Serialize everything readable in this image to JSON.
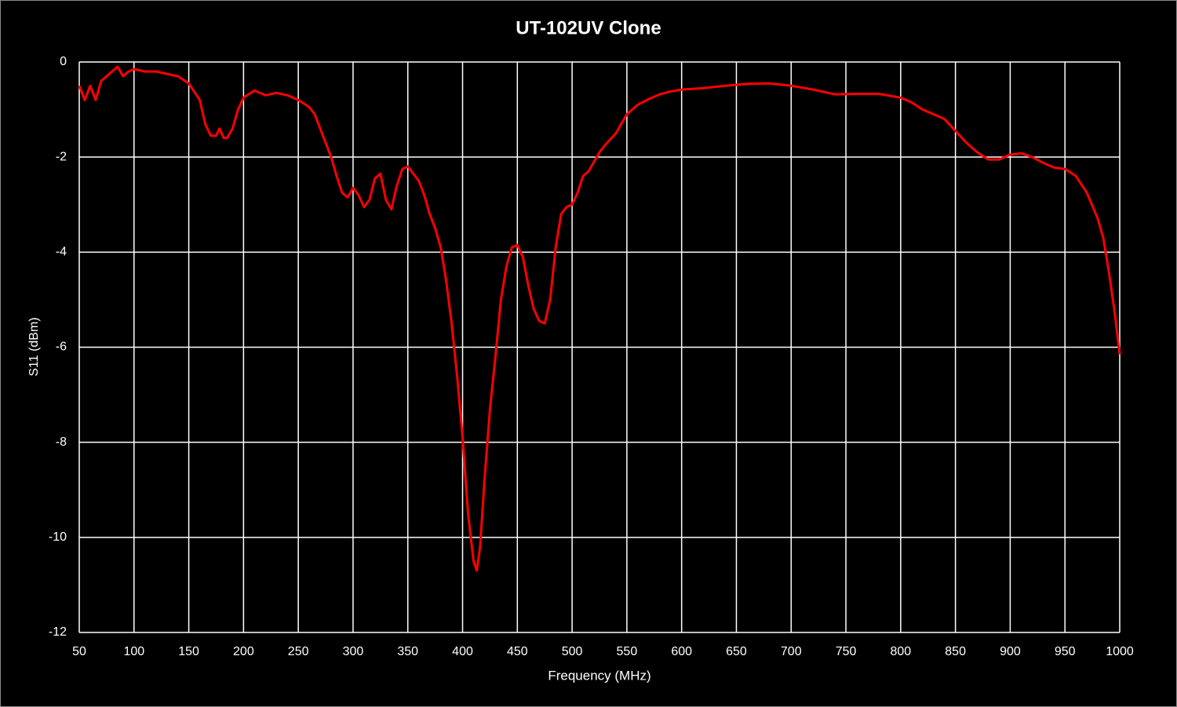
{
  "chart_data": {
    "type": "line",
    "title": "UT-102UV Clone",
    "xlabel": "Frequency (MHz)",
    "ylabel": "S11 (dBm)",
    "xlim": [
      50,
      1000
    ],
    "xticks": [
      50,
      100,
      150,
      200,
      250,
      300,
      350,
      400,
      450,
      500,
      550,
      600,
      650,
      700,
      750,
      800,
      850,
      900,
      950,
      1000
    ],
    "ylim": [
      -12,
      0
    ],
    "yticks": [
      -12,
      -10,
      -8,
      -6,
      -4,
      -2,
      0
    ],
    "grid": true,
    "series": [
      {
        "name": "S11",
        "color": "#ff0000",
        "x": [
          50,
          55,
          60,
          65,
          70,
          75,
          80,
          85,
          90,
          95,
          100,
          110,
          120,
          130,
          140,
          150,
          160,
          165,
          170,
          175,
          178,
          182,
          185,
          190,
          195,
          200,
          210,
          215,
          220,
          230,
          240,
          250,
          260,
          265,
          270,
          275,
          280,
          285,
          290,
          295,
          300,
          305,
          310,
          315,
          320,
          325,
          330,
          335,
          340,
          345,
          350,
          355,
          360,
          365,
          370,
          375,
          380,
          385,
          390,
          395,
          400,
          405,
          410,
          413,
          416,
          420,
          425,
          430,
          435,
          440,
          445,
          450,
          455,
          460,
          465,
          470,
          475,
          480,
          485,
          490,
          495,
          500,
          505,
          510,
          515,
          520,
          525,
          530,
          540,
          550,
          560,
          570,
          580,
          590,
          600,
          620,
          640,
          660,
          680,
          700,
          720,
          740,
          760,
          780,
          800,
          810,
          820,
          830,
          840,
          850,
          860,
          870,
          880,
          890,
          900,
          910,
          920,
          930,
          940,
          950,
          960,
          970,
          980,
          985,
          990,
          995,
          1000
        ],
        "values": [
          -0.5,
          -0.8,
          -0.5,
          -0.8,
          -0.4,
          -0.3,
          -0.2,
          -0.1,
          -0.3,
          -0.2,
          -0.15,
          -0.2,
          -0.2,
          -0.25,
          -0.3,
          -0.45,
          -0.8,
          -1.3,
          -1.55,
          -1.55,
          -1.4,
          -1.6,
          -1.6,
          -1.4,
          -1.0,
          -0.75,
          -0.6,
          -0.65,
          -0.7,
          -0.65,
          -0.7,
          -0.8,
          -0.95,
          -1.1,
          -1.4,
          -1.7,
          -2.0,
          -2.4,
          -2.75,
          -2.85,
          -2.65,
          -2.8,
          -3.05,
          -2.9,
          -2.45,
          -2.35,
          -2.9,
          -3.1,
          -2.6,
          -2.25,
          -2.2,
          -2.35,
          -2.5,
          -2.8,
          -3.2,
          -3.5,
          -3.9,
          -4.6,
          -5.5,
          -6.6,
          -7.9,
          -9.5,
          -10.5,
          -10.7,
          -10.2,
          -8.8,
          -7.3,
          -6.2,
          -5.0,
          -4.3,
          -3.9,
          -3.85,
          -4.1,
          -4.7,
          -5.2,
          -5.45,
          -5.5,
          -5.0,
          -3.9,
          -3.2,
          -3.05,
          -3.0,
          -2.75,
          -2.4,
          -2.3,
          -2.1,
          -1.9,
          -1.75,
          -1.5,
          -1.1,
          -0.9,
          -0.78,
          -0.68,
          -0.62,
          -0.58,
          -0.55,
          -0.5,
          -0.46,
          -0.45,
          -0.5,
          -0.58,
          -0.68,
          -0.67,
          -0.67,
          -0.75,
          -0.85,
          -1.0,
          -1.1,
          -1.2,
          -1.45,
          -1.7,
          -1.9,
          -2.05,
          -2.05,
          -1.95,
          -1.92,
          -2.0,
          -2.12,
          -2.22,
          -2.25,
          -2.4,
          -2.75,
          -3.3,
          -3.7,
          -4.4,
          -5.2,
          -6.15
        ]
      }
    ]
  }
}
